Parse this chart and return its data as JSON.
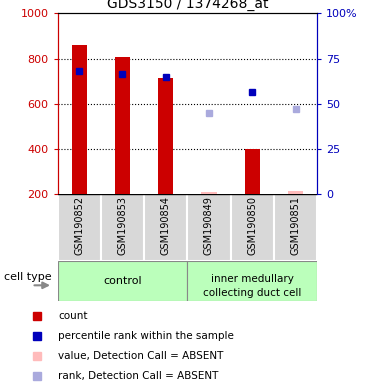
{
  "title": "GDS3150 / 1374268_at",
  "samples": [
    "GSM190852",
    "GSM190853",
    "GSM190854",
    "GSM190849",
    "GSM190850",
    "GSM190851"
  ],
  "bar_bottom": 200,
  "count_values": [
    860,
    805,
    715,
    210,
    400,
    215
  ],
  "count_absent": [
    false,
    false,
    false,
    true,
    false,
    true
  ],
  "percentile_values": [
    745,
    730,
    720,
    null,
    650,
    null
  ],
  "rank_absent_values": [
    null,
    null,
    null,
    560,
    null,
    575
  ],
  "ylim": [
    200,
    1000
  ],
  "y2lim": [
    0,
    100
  ],
  "yticks": [
    200,
    400,
    600,
    800,
    1000
  ],
  "y2ticks": [
    0,
    25,
    50,
    75,
    100
  ],
  "y2ticklabels": [
    "0",
    "25",
    "50",
    "75",
    "100%"
  ],
  "bar_color_present": "#cc0000",
  "bar_color_absent": "#ffbbbb",
  "dot_color_present": "#0000bb",
  "dot_color_absent": "#aaaadd",
  "bg_color": "#d8d8d8",
  "group_color": "#bbffbb",
  "left_label_color": "#cc0000",
  "right_label_color": "#0000bb",
  "control_label": "control",
  "inner_label_line1": "inner medullary",
  "inner_label_line2": "collecting duct cell",
  "cell_type_label": "cell type",
  "legend_items": [
    {
      "color": "#cc0000",
      "marker": "s",
      "label": "count"
    },
    {
      "color": "#0000bb",
      "marker": "s",
      "label": "percentile rank within the sample"
    },
    {
      "color": "#ffbbbb",
      "marker": "s",
      "label": "value, Detection Call = ABSENT"
    },
    {
      "color": "#aaaadd",
      "marker": "s",
      "label": "rank, Detection Call = ABSENT"
    }
  ]
}
